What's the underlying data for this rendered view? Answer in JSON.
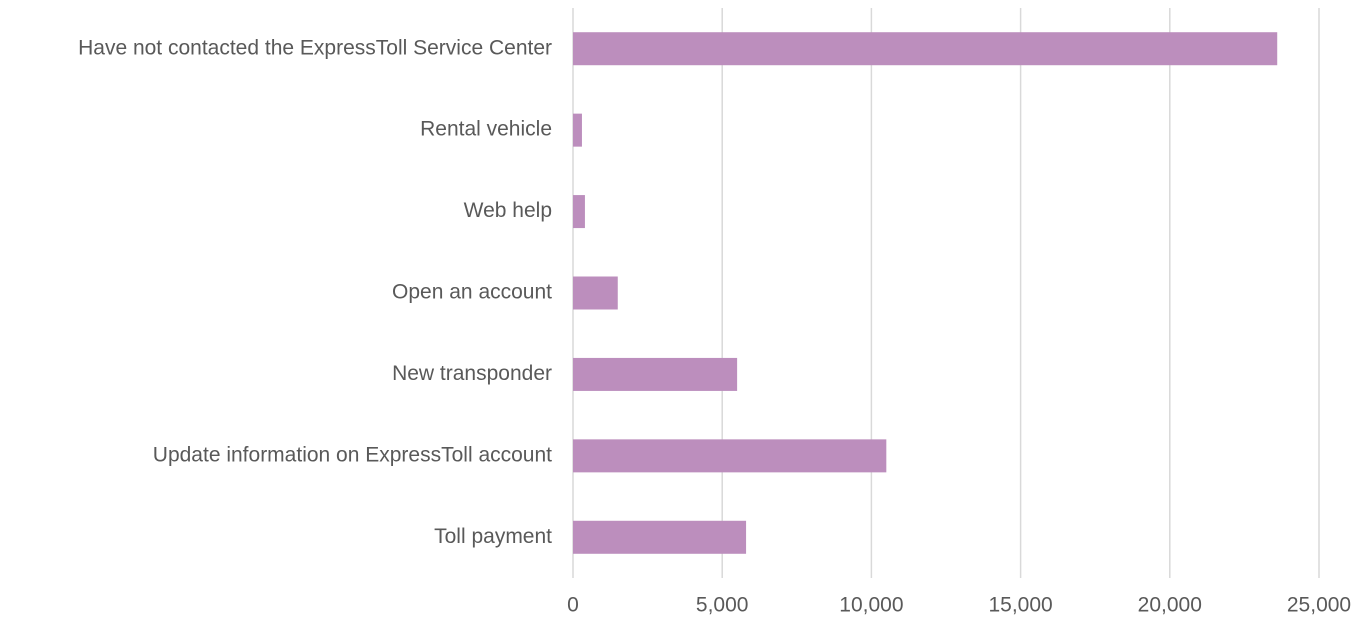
{
  "chart_data": {
    "type": "bar",
    "orientation": "horizontal",
    "categories": [
      "Have not contacted the ExpressToll Service Center",
      "Rental vehicle",
      "Web help",
      "Open an account",
      "New transponder",
      "Update information on ExpressToll account",
      "Toll payment"
    ],
    "values": [
      23600,
      300,
      400,
      1500,
      5500,
      10500,
      5800
    ],
    "color": "#bc8ebd",
    "xlim": [
      0,
      25000
    ],
    "xticks": [
      0,
      {
        "value": 5000,
        "label": "5,000"
      },
      {
        "value": 10000,
        "label": "10,000"
      },
      {
        "value": 15000,
        "label": "15,000"
      },
      {
        "value": 20000,
        "label": "20,000"
      },
      {
        "value": 25000,
        "label": "25,000"
      }
    ],
    "grid": true
  }
}
